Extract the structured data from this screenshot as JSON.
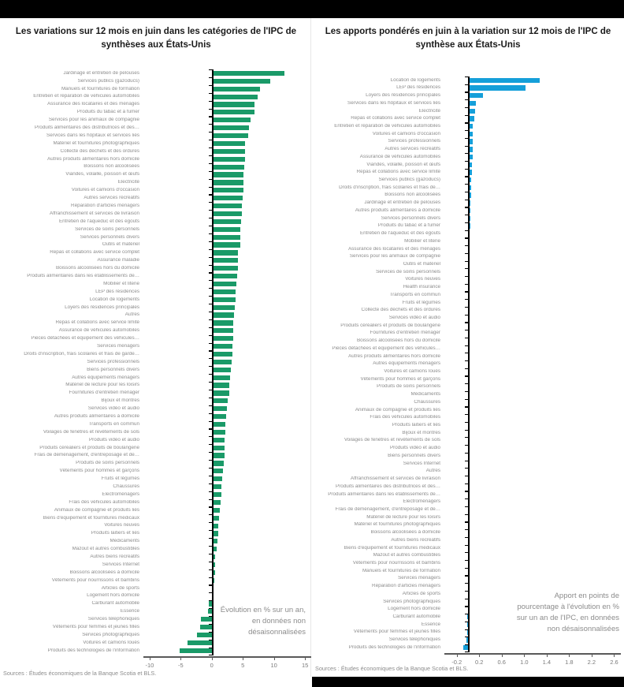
{
  "chart_data": [
    {
      "type": "bar",
      "orientation": "horizontal",
      "title": "Les variations sur 12 mois en juin dans les catégories de l'IPC de synthèses aux États-Unis",
      "annotation": "Évolution en % sur un an, en données non désaisonnalisées",
      "source": "Sources : Études économiques de la Banque Scotia et BLS.",
      "bar_color": "#1a9a68",
      "xlim": [
        -11,
        16
      ],
      "xticks": [
        -10,
        -5,
        0,
        5,
        10,
        15
      ],
      "xtick_labels": [
        "-10",
        "-5",
        "0",
        "5",
        "10",
        "15"
      ],
      "categories": [
        "Jardinage et entretien de pelouses",
        "Services publics (gazoducs)",
        "Manuels et fournitures de formation",
        "Entretien et réparation de véhicules automobiles",
        "Assurance des locataires et des ménages",
        "Produits du tabac et à fumer",
        "Services pour les animaux de compagnie",
        "Produits alimentaires des distributrices et des…",
        "Services dans les hôpitaux et services liés",
        "Matériel et fournitures photographiques",
        "Collecte des déchets et des ordures",
        "Autres produits alimentaires hors domicile",
        "Boissons non alcoolisées",
        "Viandes, volaille, poisson et œufs",
        "Électricité",
        "Voitures et camions d'occasion",
        "Autres services récréatifs",
        "Réparation d'articles ménagers",
        "Affranchissement et services de livraison",
        "Entretien de l'aqueduc et des égouts",
        "Services de soins personnels",
        "Services personnels divers",
        "Outils et matériel",
        "Repas et collations avec service complet",
        "Assurance maladie",
        "Boissons alcoolisées hors du domicile",
        "Produits alimentaires dans les établissements de…",
        "Mobilier et literie",
        "LEP des résidences",
        "Location de logements",
        "Loyers des résidences principales",
        "Autres",
        "Repas et collations avec service limité",
        "Assurance de véhicules automobiles",
        "Pièces détachées et équipement des véhicules…",
        "Services ménagers",
        "Droits d'inscription, frais scolaires et frais de garde…",
        "Services professionnels",
        "Biens personnels divers",
        "Autres équipements ménagers",
        "Matériel de lecture pour les loisirs",
        "Fournitures d'entretien ménager",
        "Bijoux et montres",
        "Services vidéo et audio",
        "Autres produits alimentaires à domicile",
        "Transports en commun",
        "Voilages de fenêtres et revêtements de sols",
        "Produits vidéo et audio",
        "Produits céréaliers et produits de boulangerie",
        "Frais de déménagement, d'entreposage et de…",
        "Produits de soins personnels",
        "Vêtements pour hommes et garçons",
        "Fruits et légumes",
        "Chaussures",
        "Électroménagers",
        "Frais des véhicules automobiles",
        "Animaux de compagnie et produits liés",
        "Biens d'équipement et fournitures médicaux",
        "Voitures neuves",
        "Produits laitiers et liés",
        "Médicaments",
        "Mazout et autres combustibles",
        "Autres biens récréatifs",
        "Services Internet",
        "Boissons alcoolisées à domicile",
        "Vêtements pour nourrissons et bambins",
        "Articles de sports",
        "Logement hors domicile",
        "Carburant automobile",
        "Essence",
        "Services téléphoniques",
        "Vêtements pour femmes et jeunes filles",
        "Services photographiques",
        "Voitures et camions loués",
        "Produits des technologies de l'information"
      ],
      "values": [
        11.7,
        9.4,
        7.7,
        7.4,
        6.9,
        6.9,
        6.3,
        6.0,
        5.9,
        5.4,
        5.3,
        5.3,
        5.2,
        5.1,
        5.1,
        5.1,
        5.0,
        4.9,
        4.8,
        4.7,
        4.6,
        4.6,
        4.6,
        4.2,
        4.2,
        4.2,
        4.1,
        4.0,
        3.8,
        3.8,
        3.7,
        3.6,
        3.5,
        3.5,
        3.4,
        3.3,
        3.3,
        3.2,
        3.1,
        2.9,
        2.8,
        2.8,
        2.6,
        2.4,
        2.3,
        2.2,
        2.2,
        2.1,
        2.0,
        2.0,
        1.9,
        1.8,
        1.7,
        1.6,
        1.5,
        1.4,
        1.3,
        1.2,
        1.1,
        1.0,
        0.9,
        0.8,
        0.6,
        0.5,
        0.5,
        0.4,
        0.2,
        0.1,
        -0.5,
        -0.6,
        -1.8,
        -1.9,
        -2.4,
        -3.9,
        -5.2
      ]
    },
    {
      "type": "bar",
      "orientation": "horizontal",
      "title": "Les apports pondérés en juin à la variation sur 12 mois de l'IPC de synthèse aux États-Unis",
      "annotation": "Apport en points de pourcentage à l'évolution en % sur un an de l'IPC, en données non désaisonnalisées",
      "source": "Sources : Études économiques de la Banque Scotia et BLS.",
      "bar_color": "#159fd9",
      "xlim": [
        -0.42,
        2.72
      ],
      "xticks": [
        -0.2,
        0.2,
        0.6,
        1.0,
        1.4,
        1.8,
        2.2,
        2.6
      ],
      "xtick_labels": [
        "-0.2",
        "0.2",
        "0.6",
        "1.0",
        "1.4",
        "1.8",
        "2.2",
        "2.6"
      ],
      "categories": [
        "Location de logements",
        "LEP des résidences",
        "Loyers des résidences principales",
        "Services dans les hôpitaux et services liés",
        "Électricité",
        "Repas et collations avec service complet",
        "Entretien et réparation de véhicules automobiles",
        "Voitures et camions d'occasion",
        "Services professionnels",
        "Autres services récréatifs",
        "Assurance de véhicules automobiles",
        "Viandes, volaille, poisson et œufs",
        "Repas et collations avec service limité",
        "Services publics (gazoducs)",
        "Droits d'inscription, frais scolaires et frais de…",
        "Boissons non alcoolisées",
        "Jardinage et entretien de pelouses",
        "Autres produits alimentaires à domicile",
        "Services personnels divers",
        "Produits du tabac et à fumer",
        "Entretien de l'aqueduc et des égouts",
        "Mobilier et literie",
        "Assurance des locataires et des ménages",
        "Services pour les animaux de compagnie",
        "Outils et matériel",
        "Services de soins personnels",
        "Voitures neuves",
        "Health insurance",
        "Transports en commun",
        "Fruits et légumes",
        "Collecte des déchets et des ordures",
        "Services vidéo et audio",
        "Produits céréaliers et produits de boulangerie",
        "Fournitures d'entretien ménager",
        "Boissons alcoolisées hors du domicile",
        "Pièces détachées et équipement des véhicules…",
        "Autres produits alimentaires hors domicile",
        "Autres équipements ménagers",
        "Voitures et camions loués",
        "Vêtements pour hommes et garçons",
        "Produits de soins personnels",
        "Médicaments",
        "Chaussures",
        "Animaux de compagnie et produits liés",
        "Frais des véhicules automobiles",
        "Produits laitiers et liés",
        "Bijoux et montres",
        "Voilages de fenêtres et revêtements de sols",
        "Produits vidéo et audio",
        "Biens personnels divers",
        "Services Internet",
        "Autres",
        "Affranchissement et services de livraison",
        "Produits alimentaires des distributrices et des…",
        "Produits alimentaires dans les établissements de…",
        "Électroménagers",
        "Frais de déménagement, d'entreposage et de…",
        "Matériel de lecture pour les loisirs",
        "Matériel et fournitures photographiques",
        "Boissons alcoolisées à domicile",
        "Autres biens récréatifs",
        "Biens d'équipement et fournitures médicaux",
        "Mazout et autres combustibles",
        "Vêtements pour nourrissons et bambins",
        "Manuels et fournitures de formation",
        "Services ménagers",
        "Réparation d'articles ménagers",
        "Articles de sports",
        "Services photographiques",
        "Logement hors domicile",
        "Carburant automobile",
        "Essence",
        "Vêtements pour femmes et jeunes filles",
        "Services téléphoniques",
        "Produits des technologies de l'information"
      ],
      "values": [
        1.27,
        1.02,
        0.27,
        0.14,
        0.13,
        0.11,
        0.09,
        0.09,
        0.08,
        0.08,
        0.08,
        0.07,
        0.07,
        0.06,
        0.05,
        0.05,
        0.04,
        0.04,
        0.04,
        0.04,
        0.03,
        0.03,
        0.03,
        0.03,
        0.03,
        0.02,
        0.02,
        0.02,
        0.02,
        0.02,
        0.02,
        0.02,
        0.02,
        0.01,
        0.01,
        0.01,
        0.01,
        0.01,
        0.01,
        0.01,
        0.01,
        0.01,
        0.01,
        0.01,
        0.01,
        0.01,
        0.01,
        0.01,
        0.0,
        0.0,
        0.0,
        0.0,
        0.0,
        0.0,
        0.0,
        0.0,
        0.0,
        0.0,
        0.0,
        0.0,
        0.0,
        0.0,
        0.0,
        0.0,
        0.0,
        0.0,
        0.0,
        0.0,
        0.0,
        0.0,
        -0.01,
        -0.01,
        -0.02,
        -0.03,
        -0.08
      ]
    }
  ]
}
